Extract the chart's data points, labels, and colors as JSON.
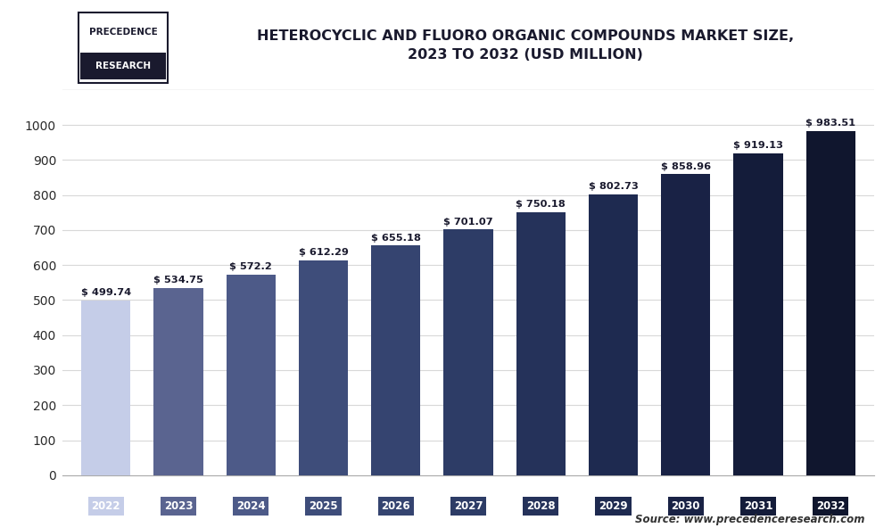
{
  "categories": [
    "2022",
    "2023",
    "2024",
    "2025",
    "2026",
    "2027",
    "2028",
    "2029",
    "2030",
    "2031",
    "2032"
  ],
  "values": [
    499.74,
    534.75,
    572.2,
    612.29,
    655.18,
    701.07,
    750.18,
    802.73,
    858.96,
    919.13,
    983.51
  ],
  "bar_colors": [
    "#c5cde8",
    "#5a6490",
    "#4d5a88",
    "#3e4d7a",
    "#354470",
    "#2d3c66",
    "#25325a",
    "#1e2a50",
    "#192245",
    "#141c3a",
    "#10162e"
  ],
  "tick_bg_colors": [
    "#c5cde8",
    "#5a6490",
    "#4d5a88",
    "#3e4d7a",
    "#354470",
    "#2d3c66",
    "#25325a",
    "#1e2a50",
    "#192245",
    "#141c3a",
    "#10162e"
  ],
  "title_line1": "HETEROCYCLIC AND FLUORO ORGANIC COMPOUNDS MARKET SIZE,",
  "title_line2": "2023 TO 2032 (USD MILLION)",
  "ylim": [
    0,
    1100
  ],
  "yticks": [
    0,
    100,
    200,
    300,
    400,
    500,
    600,
    700,
    800,
    900,
    1000
  ],
  "source_text": "Source: www.precedenceresearch.com",
  "bg_color": "#ffffff",
  "plot_bg_color": "#ffffff",
  "header_bg_color": "#ffffff",
  "title_color": "#1a1a2e",
  "label_color": "#2a2a2a",
  "grid_color": "#d8d8d8",
  "tick_label_color": "#ffffff",
  "value_label_color": "#1a1a2e",
  "value_prefix": "$ ",
  "logo_border_color": "#1a1a2e",
  "logo_text_color": "#1a1a2e",
  "logo_bg_color": "#1a1a2e",
  "logo_text_white": "#ffffff"
}
